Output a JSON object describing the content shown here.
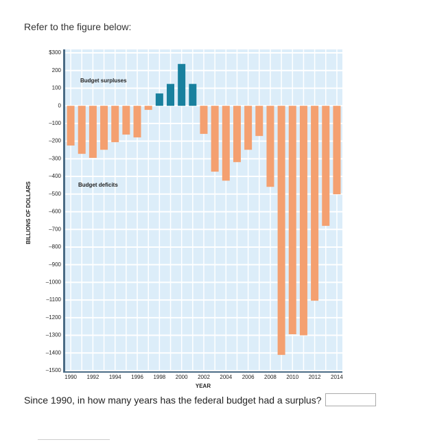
{
  "prompt": "Refer to the figure below:",
  "question": "Since 1990, in how many years has the federal budget had a surplus?",
  "chart_data": {
    "type": "bar",
    "y_label": "BILLIONS OF DOLLARS",
    "x_label": "YEAR",
    "annotations": [
      "Budget surpluses",
      "Budget deficits"
    ],
    "categories": [
      "1990",
      null,
      "1992",
      null,
      "1994",
      null,
      "1996",
      null,
      "1998",
      null,
      "2000",
      null,
      "2002",
      null,
      "2004",
      null,
      "2006",
      null,
      "2008",
      null,
      "2010",
      null,
      "2012",
      null,
      "2014"
    ],
    "values": [
      -225,
      -272,
      -295,
      -249,
      -206,
      -163,
      -179,
      -23,
      70,
      124,
      237,
      124,
      -159,
      -373,
      -424,
      -319,
      -249,
      -171,
      -459,
      -1411,
      -1294,
      -1300,
      -1104,
      -680,
      -501
    ],
    "surplus_color": "#18809e",
    "deficit_color": "#f4a070",
    "ylim": [
      -1500,
      300
    ],
    "yticks": [
      {
        "value": -1500,
        "label": "–1500"
      },
      {
        "value": -1400,
        "label": "–1400"
      },
      {
        "value": -1300,
        "label": "–1300"
      },
      {
        "value": -1200,
        "label": "–1200"
      },
      {
        "value": -1100,
        "label": "–1100"
      },
      {
        "value": -1000,
        "label": "–1000"
      },
      {
        "value": -900,
        "label": "–900"
      },
      {
        "value": -800,
        "label": "–800"
      },
      {
        "value": -700,
        "label": "–700"
      },
      {
        "value": -600,
        "label": "–600"
      },
      {
        "value": -500,
        "label": "–500"
      },
      {
        "value": -400,
        "label": "–400"
      },
      {
        "value": -300,
        "label": "–300"
      },
      {
        "value": -200,
        "label": "–200"
      },
      {
        "value": -100,
        "label": "–100"
      },
      0,
      100,
      200,
      {
        "value": 300,
        "label": "$300"
      }
    ],
    "grid": true
  }
}
